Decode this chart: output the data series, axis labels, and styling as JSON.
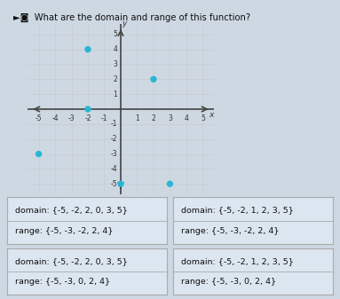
{
  "title": "What are the domain and range of this function?",
  "points": [
    [
      -2,
      4
    ],
    [
      2,
      2
    ],
    [
      -2,
      0
    ],
    [
      0,
      -5
    ],
    [
      3,
      -5
    ],
    [
      -5,
      -3
    ]
  ],
  "point_color": "#29b6d4",
  "axis_range": [
    -5,
    5
  ],
  "grid_color": "#cccccc",
  "axis_color": "#444444",
  "bg_color": "#cdd8e3",
  "box_bg": "#dce6f0",
  "options": [
    {
      "domain_text": "domain: {-5, -2, 2, 0, 3, 5}",
      "range_text": "range: {-5, -3, -2, 2, 4}"
    },
    {
      "domain_text": "domain: {-5, -2, 1, 2, 3, 5}",
      "range_text": "range: {-5, -3, -2, 2, 4}"
    },
    {
      "domain_text": "domain: {-5, -2, 2, 0, 3, 5}",
      "range_text": "range: {-5, -3, 0, 2, 4}"
    },
    {
      "domain_text": "domain: {-5, -2, 1, 2, 3, 5}",
      "range_text": "range: {-5, -3, 0, 2, 4}"
    }
  ],
  "figsize": [
    3.83,
    3.37
  ],
  "dpi": 100
}
